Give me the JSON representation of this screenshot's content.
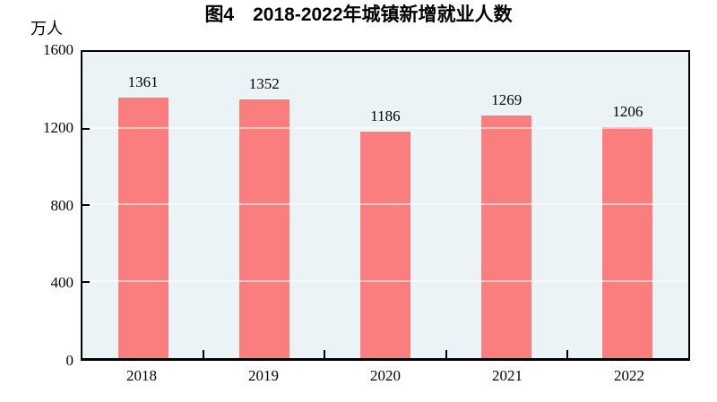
{
  "title": "图4　2018-2022年城镇新增就业人数",
  "axis": {
    "unit_label": "万人"
  },
  "colors": {
    "bar": "#fb7e7f",
    "plot_bg": "#ecf3f7",
    "gridline": "#ffffff",
    "axis_border": "#000000",
    "text": "#000000"
  },
  "chart_data": {
    "type": "bar",
    "categories": [
      "2018",
      "2019",
      "2020",
      "2021",
      "2022"
    ],
    "values": [
      1361,
      1352,
      1186,
      1269,
      1206
    ],
    "title": "图4　2018-2022年城镇新增就业人数",
    "xlabel": "",
    "ylabel": "万人",
    "ylim": [
      0,
      1600
    ],
    "yticks": [
      0,
      400,
      800,
      1200,
      1600
    ],
    "bar_value_labels_shown": true,
    "grid": true,
    "legend": false
  }
}
